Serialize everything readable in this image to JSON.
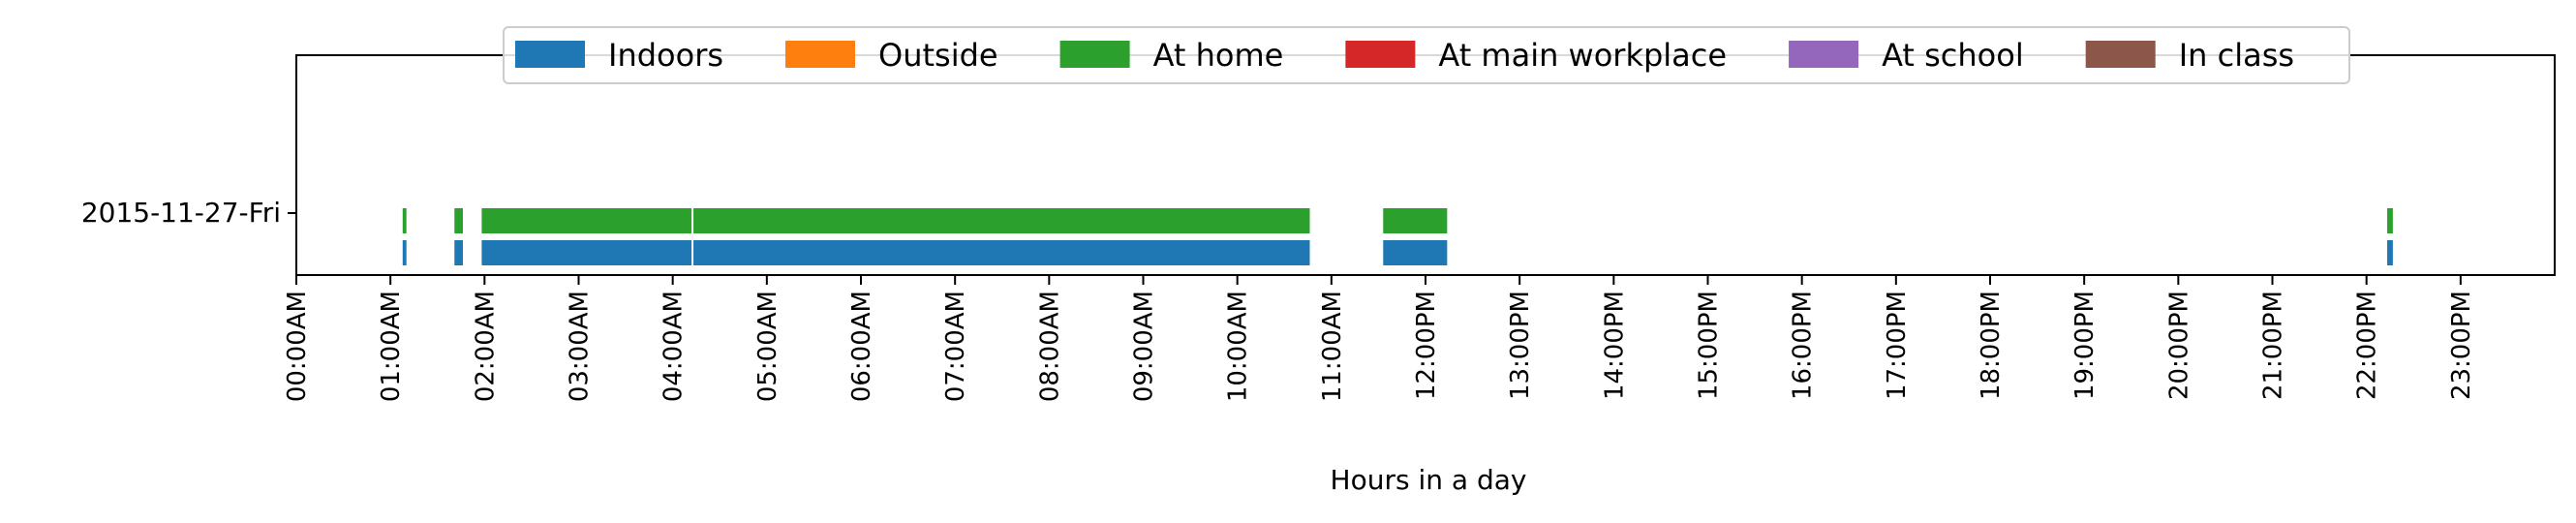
{
  "chart_data": {
    "type": "bar",
    "subtype": "timeline",
    "xlabel": "Hours in a day",
    "xlim": [
      0,
      24
    ],
    "x_ticks": [
      "00:00AM",
      "01:00AM",
      "02:00AM",
      "03:00AM",
      "04:00AM",
      "05:00AM",
      "06:00AM",
      "07:00AM",
      "08:00AM",
      "09:00AM",
      "10:00AM",
      "11:00AM",
      "12:00PM",
      "13:00PM",
      "14:00PM",
      "15:00PM",
      "16:00PM",
      "17:00PM",
      "18:00PM",
      "19:00PM",
      "20:00PM",
      "21:00PM",
      "22:00PM",
      "23:00PM"
    ],
    "categories": [
      "2015-11-27-Fri"
    ],
    "grid": false,
    "legend_position": "top-center",
    "legend": [
      {
        "name": "Indoors",
        "color": "#1f77b4"
      },
      {
        "name": "Outside",
        "color": "#ff7f0e"
      },
      {
        "name": "At home",
        "color": "#2ca02c"
      },
      {
        "name": "At main workplace",
        "color": "#d62728"
      },
      {
        "name": "At school",
        "color": "#9467bd"
      },
      {
        "name": "In class",
        "color": "#8c564b"
      }
    ],
    "series": [
      {
        "name": "At home",
        "color": "#2ca02c",
        "intervals": [
          [
            1.13,
            1.17
          ],
          [
            1.68,
            1.77
          ],
          [
            1.97,
            4.2
          ],
          [
            4.22,
            10.77
          ],
          [
            11.55,
            12.23
          ],
          [
            22.22,
            22.28
          ]
        ]
      },
      {
        "name": "Indoors",
        "color": "#1f77b4",
        "intervals": [
          [
            1.13,
            1.17
          ],
          [
            1.68,
            1.77
          ],
          [
            1.97,
            4.2
          ],
          [
            4.22,
            10.77
          ],
          [
            11.55,
            12.23
          ],
          [
            22.22,
            22.28
          ]
        ]
      }
    ]
  }
}
